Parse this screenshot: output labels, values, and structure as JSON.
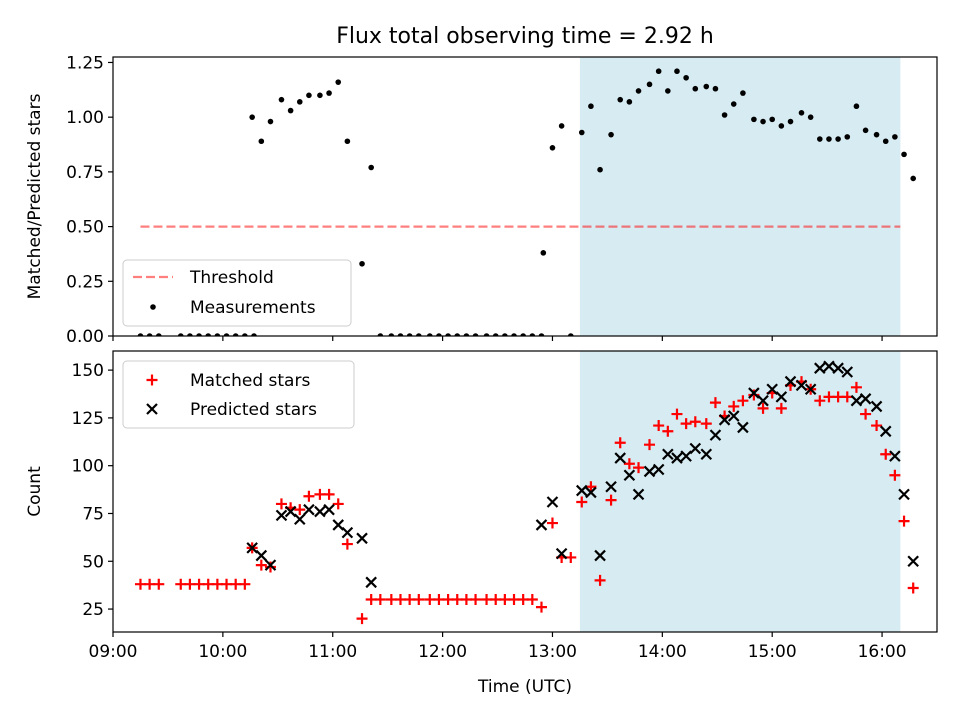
{
  "chart_data": [
    {
      "type": "scatter",
      "title": "Flux total observing time = 2.92 h",
      "xlabel": "",
      "ylabel": "Matched/Predicted stars",
      "xlim": [
        "09:00",
        "16:30"
      ],
      "ylim": [
        0,
        1.275
      ],
      "xtick_labels": [
        "09:00",
        "10:00",
        "11:00",
        "12:00",
        "13:00",
        "14:00",
        "15:00",
        "16:00"
      ],
      "ytick_labels": [
        "0.00",
        "0.25",
        "0.50",
        "0.75",
        "1.00",
        "1.25"
      ],
      "ytick_values": [
        0,
        0.25,
        0.5,
        0.75,
        1.0,
        1.25
      ],
      "shaded_span": [
        "13:15",
        "16:10"
      ],
      "shaded_color": "#add8e6",
      "legend_position": "lower-left",
      "threshold": {
        "name": "Threshold",
        "value": 0.5,
        "x_range": [
          "09:15",
          "16:10"
        ],
        "color": "#ff0000",
        "alpha": 0.5,
        "style": "dashed"
      },
      "series": [
        {
          "name": "Measurements",
          "color": "#000000",
          "marker": "dot",
          "points": [
            [
              "09:15",
              0
            ],
            [
              "09:20",
              0
            ],
            [
              "09:25",
              0
            ],
            [
              "09:37",
              0
            ],
            [
              "09:42",
              0
            ],
            [
              "09:47",
              0
            ],
            [
              "09:52",
              0
            ],
            [
              "09:57",
              0
            ],
            [
              "10:02",
              0
            ],
            [
              "10:07",
              0
            ],
            [
              "10:12",
              0
            ],
            [
              "10:17",
              0
            ],
            [
              "10:16",
              1.0
            ],
            [
              "10:21",
              0.89
            ],
            [
              "10:26",
              0.98
            ],
            [
              "10:32",
              1.08
            ],
            [
              "10:37",
              1.03
            ],
            [
              "10:42",
              1.07
            ],
            [
              "10:47",
              1.1
            ],
            [
              "10:53",
              1.1
            ],
            [
              "10:58",
              1.11
            ],
            [
              "11:03",
              1.16
            ],
            [
              "11:08",
              0.89
            ],
            [
              "11:16",
              0.33
            ],
            [
              "11:21",
              0.77
            ],
            [
              "11:26",
              0
            ],
            [
              "11:32",
              0
            ],
            [
              "11:37",
              0
            ],
            [
              "11:42",
              0
            ],
            [
              "11:47",
              0
            ],
            [
              "11:53",
              0
            ],
            [
              "11:58",
              0
            ],
            [
              "12:03",
              0
            ],
            [
              "12:08",
              0
            ],
            [
              "12:13",
              0
            ],
            [
              "12:18",
              0
            ],
            [
              "12:24",
              0
            ],
            [
              "12:29",
              0
            ],
            [
              "12:34",
              0
            ],
            [
              "12:39",
              0
            ],
            [
              "12:44",
              0
            ],
            [
              "12:49",
              0
            ],
            [
              "12:54",
              0
            ],
            [
              "12:55",
              0.38
            ],
            [
              "13:00",
              0.86
            ],
            [
              "13:05",
              0.96
            ],
            [
              "13:10",
              0.0
            ],
            [
              "13:16",
              0.93
            ],
            [
              "13:21",
              1.05
            ],
            [
              "13:26",
              0.76
            ],
            [
              "13:32",
              0.92
            ],
            [
              "13:37",
              1.08
            ],
            [
              "13:42",
              1.07
            ],
            [
              "13:47",
              1.12
            ],
            [
              "13:53",
              1.15
            ],
            [
              "13:58",
              1.21
            ],
            [
              "14:03",
              1.12
            ],
            [
              "14:08",
              1.21
            ],
            [
              "14:13",
              1.18
            ],
            [
              "14:18",
              1.13
            ],
            [
              "14:24",
              1.14
            ],
            [
              "14:29",
              1.13
            ],
            [
              "14:34",
              1.01
            ],
            [
              "14:39",
              1.06
            ],
            [
              "14:44",
              1.11
            ],
            [
              "14:50",
              0.99
            ],
            [
              "14:55",
              0.98
            ],
            [
              "15:00",
              0.99
            ],
            [
              "15:05",
              0.96
            ],
            [
              "15:10",
              0.98
            ],
            [
              "15:16",
              1.02
            ],
            [
              "15:21",
              1.0
            ],
            [
              "15:26",
              0.9
            ],
            [
              "15:31",
              0.9
            ],
            [
              "15:36",
              0.9
            ],
            [
              "15:41",
              0.91
            ],
            [
              "15:46",
              1.05
            ],
            [
              "15:51",
              0.94
            ],
            [
              "15:57",
              0.92
            ],
            [
              "16:02",
              0.89
            ],
            [
              "16:07",
              0.91
            ],
            [
              "16:12",
              0.83
            ],
            [
              "16:17",
              0.72
            ]
          ]
        }
      ]
    },
    {
      "type": "scatter",
      "title": "",
      "xlabel": "Time (UTC)",
      "ylabel": "Count",
      "xlim": [
        "09:00",
        "16:30"
      ],
      "ylim": [
        13,
        160
      ],
      "xtick_labels": [
        "09:00",
        "10:00",
        "11:00",
        "12:00",
        "13:00",
        "14:00",
        "15:00",
        "16:00"
      ],
      "ytick_labels": [
        "25",
        "50",
        "75",
        "100",
        "125",
        "150"
      ],
      "ytick_values": [
        25,
        50,
        75,
        100,
        125,
        150
      ],
      "shaded_span": [
        "13:15",
        "16:10"
      ],
      "shaded_color": "#add8e6",
      "legend_position": "upper-left",
      "series": [
        {
          "name": "Matched stars",
          "color": "#ff0000",
          "marker": "plus",
          "points": [
            [
              "09:15",
              38
            ],
            [
              "09:20",
              38
            ],
            [
              "09:25",
              38
            ],
            [
              "09:37",
              38
            ],
            [
              "09:42",
              38
            ],
            [
              "09:47",
              38
            ],
            [
              "09:52",
              38
            ],
            [
              "09:57",
              38
            ],
            [
              "10:02",
              38
            ],
            [
              "10:07",
              38
            ],
            [
              "10:12",
              38
            ],
            [
              "10:16",
              57
            ],
            [
              "10:21",
              48
            ],
            [
              "10:26",
              47
            ],
            [
              "10:32",
              80
            ],
            [
              "10:37",
              78
            ],
            [
              "10:42",
              77
            ],
            [
              "10:47",
              84
            ],
            [
              "10:53",
              85
            ],
            [
              "10:58",
              85
            ],
            [
              "11:03",
              80
            ],
            [
              "11:08",
              59
            ],
            [
              "11:16",
              20
            ],
            [
              "11:21",
              30
            ],
            [
              "11:26",
              30
            ],
            [
              "11:32",
              30
            ],
            [
              "11:37",
              30
            ],
            [
              "11:42",
              30
            ],
            [
              "11:47",
              30
            ],
            [
              "11:53",
              30
            ],
            [
              "11:58",
              30
            ],
            [
              "12:03",
              30
            ],
            [
              "12:08",
              30
            ],
            [
              "12:13",
              30
            ],
            [
              "12:18",
              30
            ],
            [
              "12:24",
              30
            ],
            [
              "12:29",
              30
            ],
            [
              "12:34",
              30
            ],
            [
              "12:39",
              30
            ],
            [
              "12:44",
              30
            ],
            [
              "12:49",
              30
            ],
            [
              "12:54",
              26
            ],
            [
              "13:00",
              70
            ],
            [
              "13:05",
              52
            ],
            [
              "13:10",
              52
            ],
            [
              "13:16",
              81
            ],
            [
              "13:21",
              89
            ],
            [
              "13:26",
              40
            ],
            [
              "13:32",
              82
            ],
            [
              "13:37",
              112
            ],
            [
              "13:42",
              101
            ],
            [
              "13:47",
              99
            ],
            [
              "13:53",
              111
            ],
            [
              "13:58",
              121
            ],
            [
              "14:03",
              118
            ],
            [
              "14:08",
              127
            ],
            [
              "14:13",
              122
            ],
            [
              "14:18",
              123
            ],
            [
              "14:24",
              122
            ],
            [
              "14:29",
              133
            ],
            [
              "14:34",
              126
            ],
            [
              "14:39",
              131
            ],
            [
              "14:44",
              134
            ],
            [
              "14:50",
              137
            ],
            [
              "14:55",
              130
            ],
            [
              "15:00",
              138
            ],
            [
              "15:05",
              130
            ],
            [
              "15:10",
              142
            ],
            [
              "15:16",
              144
            ],
            [
              "15:21",
              140
            ],
            [
              "15:26",
              134
            ],
            [
              "15:31",
              136
            ],
            [
              "15:36",
              136
            ],
            [
              "15:41",
              136
            ],
            [
              "15:46",
              141
            ],
            [
              "15:51",
              127
            ],
            [
              "15:57",
              121
            ],
            [
              "16:02",
              106
            ],
            [
              "16:07",
              95
            ],
            [
              "16:12",
              71
            ],
            [
              "16:17",
              36
            ]
          ]
        },
        {
          "name": "Predicted stars",
          "color": "#000000",
          "marker": "x",
          "points": [
            [
              "10:16",
              57
            ],
            [
              "10:21",
              53
            ],
            [
              "10:26",
              48
            ],
            [
              "10:32",
              74
            ],
            [
              "10:37",
              76
            ],
            [
              "10:42",
              72
            ],
            [
              "10:47",
              77
            ],
            [
              "10:53",
              76
            ],
            [
              "10:58",
              77
            ],
            [
              "11:03",
              69
            ],
            [
              "11:08",
              65
            ],
            [
              "11:16",
              62
            ],
            [
              "11:21",
              39
            ],
            [
              "12:54",
              69
            ],
            [
              "13:00",
              81
            ],
            [
              "13:05",
              54
            ],
            [
              "13:16",
              87
            ],
            [
              "13:21",
              86
            ],
            [
              "13:26",
              53
            ],
            [
              "13:32",
              89
            ],
            [
              "13:37",
              104
            ],
            [
              "13:42",
              95
            ],
            [
              "13:47",
              85
            ],
            [
              "13:53",
              97
            ],
            [
              "13:58",
              98
            ],
            [
              "14:03",
              106
            ],
            [
              "14:08",
              104
            ],
            [
              "14:13",
              105
            ],
            [
              "14:18",
              109
            ],
            [
              "14:24",
              106
            ],
            [
              "14:29",
              116
            ],
            [
              "14:34",
              124
            ],
            [
              "14:39",
              126
            ],
            [
              "14:44",
              120
            ],
            [
              "14:50",
              138
            ],
            [
              "14:55",
              134
            ],
            [
              "15:00",
              140
            ],
            [
              "15:05",
              136
            ],
            [
              "15:10",
              144
            ],
            [
              "15:16",
              142
            ],
            [
              "15:21",
              140
            ],
            [
              "15:26",
              151
            ],
            [
              "15:31",
              152
            ],
            [
              "15:36",
              151
            ],
            [
              "15:41",
              149
            ],
            [
              "15:46",
              134
            ],
            [
              "15:51",
              135
            ],
            [
              "15:57",
              131
            ],
            [
              "16:02",
              118
            ],
            [
              "16:07",
              105
            ],
            [
              "16:12",
              85
            ],
            [
              "16:17",
              50
            ]
          ]
        }
      ]
    }
  ]
}
